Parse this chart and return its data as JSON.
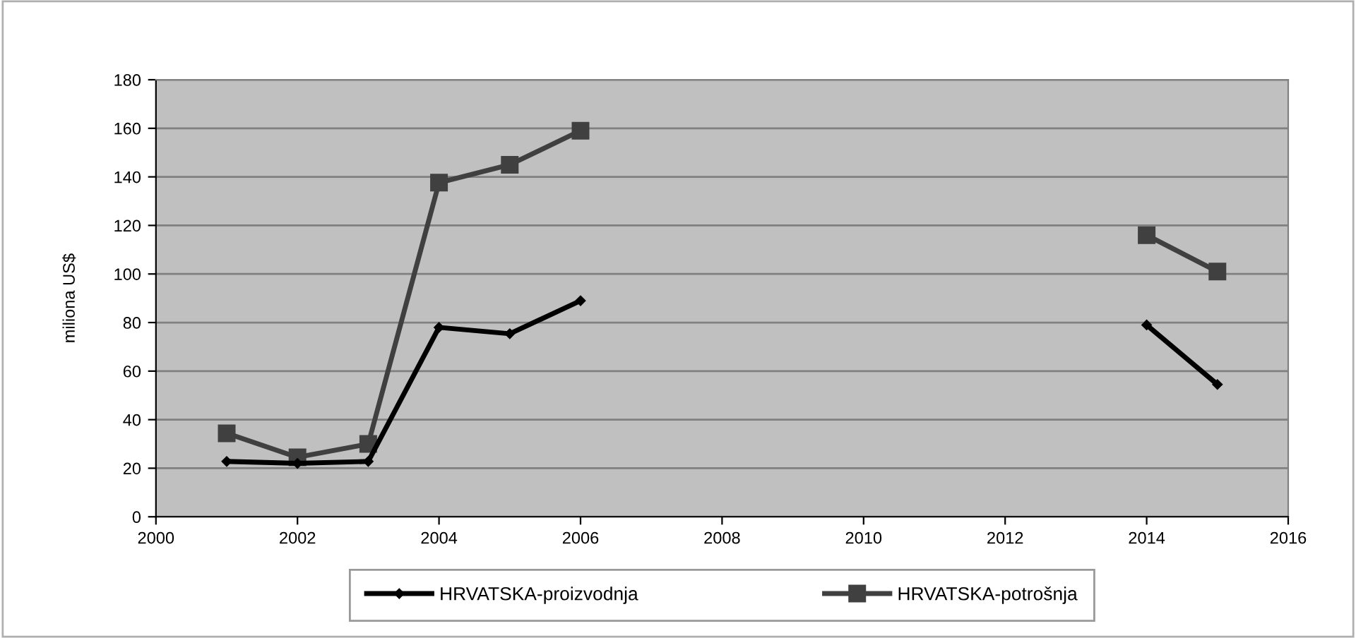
{
  "chart_data": {
    "type": "line",
    "ylabel": "miliona US$",
    "x": [
      2001,
      2002,
      2003,
      2004,
      2005,
      2006,
      2014,
      2015
    ],
    "series": [
      {
        "name": "HRVATSKA-proizvodnja",
        "color": "#000000",
        "marker": "diamond",
        "values": [
          22.8,
          22,
          22.8,
          78,
          75.4,
          89,
          79,
          54.5
        ]
      },
      {
        "name": "HRVATSKA-potrošnja",
        "color": "#404040",
        "marker": "square",
        "values": [
          34.4,
          24.5,
          30,
          137.6,
          145,
          159,
          116,
          101
        ]
      }
    ],
    "xlim": [
      2000,
      2016
    ],
    "xticks": [
      2000,
      2002,
      2004,
      2006,
      2008,
      2010,
      2012,
      2014,
      2016
    ],
    "ylim": [
      0,
      180
    ],
    "yticks": [
      0,
      20,
      40,
      60,
      80,
      100,
      120,
      140,
      160,
      180
    ],
    "grid": "y",
    "legend": "bottom"
  }
}
